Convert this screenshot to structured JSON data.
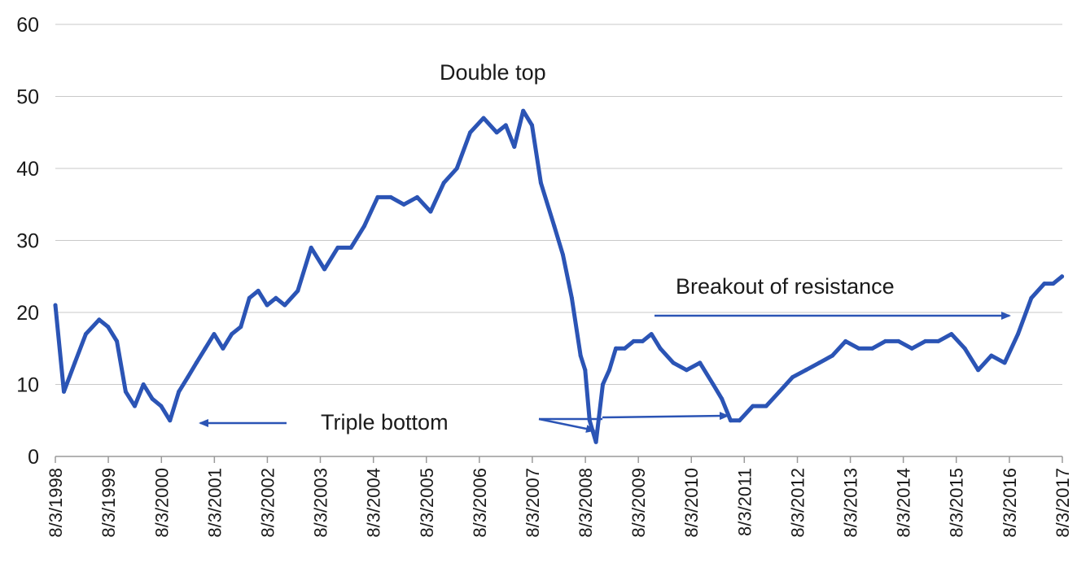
{
  "chart_data": {
    "type": "line",
    "title": "",
    "xlabel": "",
    "ylabel": "",
    "ylim": [
      0,
      60
    ],
    "yticks": [
      0,
      10,
      20,
      30,
      40,
      50,
      60
    ],
    "xlim": [
      "8/3/1998",
      "8/3/2017"
    ],
    "x_tick_labels": [
      "8/3/1998",
      "8/3/1999",
      "8/3/2000",
      "8/3/2001",
      "8/3/2002",
      "8/3/2003",
      "8/3/2004",
      "8/3/2005",
      "8/3/2006",
      "8/3/2007",
      "8/3/2008",
      "8/3/2009",
      "8/3/2010",
      "8/3/2011",
      "8/3/2012",
      "8/3/2013",
      "8/3/2014",
      "8/3/2015",
      "8/3/2016",
      "8/3/2017"
    ],
    "grid": true,
    "legend": "none",
    "line_color": "#2b54b5",
    "series": [
      {
        "x": [
          "1998-08-03",
          "1998-10-01",
          "1998-12-15",
          "1999-03-01",
          "1999-06-01",
          "1999-08-01",
          "1999-10-01",
          "1999-12-01",
          "2000-02-01",
          "2000-04-01",
          "2000-06-01",
          "2000-08-01",
          "2000-10-01",
          "2000-12-01",
          "2001-02-01",
          "2001-04-01",
          "2001-06-01",
          "2001-08-01",
          "2001-10-01",
          "2001-12-01",
          "2002-02-01",
          "2002-04-01",
          "2002-06-01",
          "2002-08-01",
          "2002-10-01",
          "2002-12-01",
          "2003-03-01",
          "2003-06-01",
          "2003-09-01",
          "2003-12-01",
          "2004-03-01",
          "2004-06-01",
          "2004-09-01",
          "2004-12-01",
          "2005-03-01",
          "2005-06-01",
          "2005-09-01",
          "2005-12-01",
          "2006-03-01",
          "2006-06-01",
          "2006-09-01",
          "2006-12-01",
          "2007-02-01",
          "2007-04-01",
          "2007-06-01",
          "2007-08-01",
          "2007-10-01",
          "2008-01-01",
          "2008-03-01",
          "2008-05-01",
          "2008-07-01",
          "2008-08-01",
          "2008-09-01",
          "2008-10-15",
          "2008-12-01",
          "2009-01-15",
          "2009-03-01",
          "2009-05-01",
          "2009-07-01",
          "2009-09-01",
          "2009-11-01",
          "2010-01-01",
          "2010-04-01",
          "2010-07-01",
          "2010-10-01",
          "2011-01-01",
          "2011-03-01",
          "2011-05-01",
          "2011-07-01",
          "2011-10-01",
          "2012-01-01",
          "2012-04-01",
          "2012-07-01",
          "2012-10-01",
          "2013-01-01",
          "2013-04-01",
          "2013-07-01",
          "2013-10-01",
          "2014-01-01",
          "2014-04-01",
          "2014-07-01",
          "2014-10-01",
          "2015-01-01",
          "2015-04-01",
          "2015-07-01",
          "2015-10-01",
          "2016-01-01",
          "2016-04-01",
          "2016-07-01",
          "2016-10-01",
          "2017-01-01",
          "2017-04-01",
          "2017-06-01",
          "2017-08-01"
        ],
        "values": [
          21,
          9,
          13,
          17,
          19,
          18,
          16,
          9,
          7,
          10,
          8,
          7,
          5,
          9,
          11,
          13,
          15,
          17,
          15,
          17,
          18,
          22,
          23,
          21,
          22,
          21,
          23,
          29,
          26,
          29,
          29,
          32,
          36,
          36,
          35,
          36,
          34,
          38,
          40,
          45,
          47,
          45,
          46,
          43,
          48,
          46,
          38,
          32,
          28,
          22,
          14,
          12,
          5,
          2,
          10,
          12,
          15,
          15,
          16,
          16,
          17,
          15,
          13,
          12,
          13,
          10,
          8,
          5,
          5,
          7,
          7,
          9,
          11,
          12,
          13,
          14,
          16,
          15,
          15,
          16,
          16,
          15,
          16,
          16,
          17,
          15,
          12,
          14,
          13,
          17,
          22,
          24,
          24,
          25
        ]
      }
    ],
    "annotations": [
      {
        "text": "Double top"
      },
      {
        "text": "Triple bottom"
      },
      {
        "text": "Breakout of resistance"
      }
    ]
  }
}
